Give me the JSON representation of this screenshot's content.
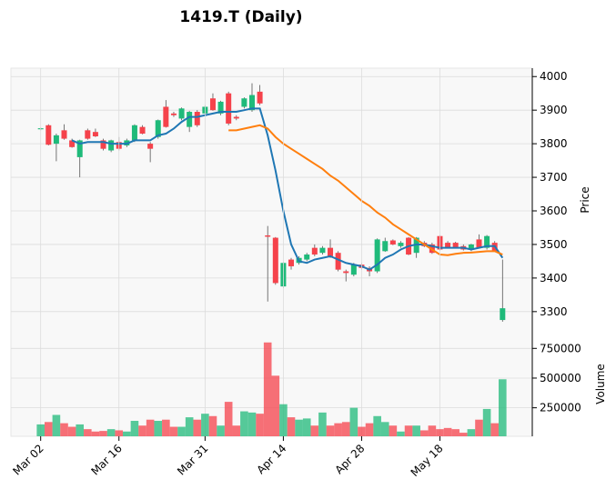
{
  "chart_data": [
    {
      "type": "candlestick",
      "title": "1419.T (Daily)",
      "y_label": "Price",
      "up_color": "#1fba7a",
      "down_color": "#f5424b",
      "open": [
        3843,
        3855,
        3800,
        3840,
        3810,
        3760,
        3840,
        3835,
        3810,
        3780,
        3805,
        3795,
        3810,
        3850,
        3800,
        3820,
        3910,
        3890,
        3875,
        3850,
        3895,
        3890,
        3935,
        3890,
        3950,
        3880,
        3910,
        3900,
        3955,
        3527,
        3520,
        3375,
        3455,
        3445,
        3455,
        3490,
        3475,
        3490,
        3475,
        3420,
        3410,
        3440,
        3430,
        3420,
        3480,
        3512,
        3495,
        3520,
        3475,
        3505,
        3500,
        3525,
        3505,
        3505,
        3495,
        3485,
        3515,
        3490,
        3505,
        3275
      ],
      "high": [
        3848,
        3858,
        3830,
        3858,
        3815,
        3812,
        3845,
        3845,
        3815,
        3812,
        3820,
        3815,
        3858,
        3855,
        3805,
        3872,
        3930,
        3895,
        3908,
        3898,
        3900,
        3915,
        3950,
        3928,
        3955,
        3885,
        3938,
        3980,
        3975,
        3555,
        3522,
        3448,
        3460,
        3465,
        3475,
        3500,
        3495,
        3515,
        3480,
        3425,
        3445,
        3445,
        3435,
        3518,
        3520,
        3515,
        3510,
        3522,
        3522,
        3510,
        3505,
        3528,
        3510,
        3508,
        3500,
        3502,
        3530,
        3528,
        3510,
        3455
      ],
      "low": [
        3840,
        3795,
        3748,
        3812,
        3788,
        3700,
        3812,
        3820,
        3780,
        3775,
        3780,
        3790,
        3805,
        3828,
        3745,
        3815,
        3848,
        3880,
        3870,
        3835,
        3850,
        3885,
        3898,
        3885,
        3855,
        3870,
        3905,
        3895,
        3915,
        3330,
        3380,
        3370,
        3425,
        3440,
        3450,
        3465,
        3470,
        3460,
        3420,
        3390,
        3405,
        3425,
        3405,
        3415,
        3478,
        3498,
        3490,
        3468,
        3460,
        3492,
        3472,
        3482,
        3488,
        3488,
        3482,
        3480,
        3488,
        3485,
        3478,
        3270
      ],
      "close": [
        3846,
        3797,
        3825,
        3815,
        3790,
        3810,
        3815,
        3822,
        3785,
        3810,
        3785,
        3810,
        3855,
        3830,
        3785,
        3870,
        3850,
        3885,
        3905,
        3895,
        3855,
        3910,
        3900,
        3925,
        3860,
        3875,
        3935,
        3945,
        3920,
        3523,
        3385,
        3445,
        3435,
        3460,
        3470,
        3470,
        3490,
        3465,
        3425,
        3415,
        3440,
        3430,
        3420,
        3515,
        3510,
        3500,
        3505,
        3470,
        3520,
        3495,
        3475,
        3485,
        3490,
        3490,
        3485,
        3500,
        3490,
        3525,
        3480,
        3310
      ],
      "moving_averages": [
        {
          "color": "#1f77b4",
          "values": [
            null,
            null,
            null,
            null,
            3810,
            3800,
            3805,
            3805,
            3805,
            3800,
            3800,
            3800,
            3810,
            3810,
            3810,
            3825,
            3830,
            3845,
            3865,
            3880,
            3880,
            3885,
            3890,
            3895,
            3895,
            3895,
            3900,
            3905,
            3905,
            3825,
            3720,
            3600,
            3500,
            3450,
            3445,
            3455,
            3460,
            3465,
            3455,
            3445,
            3440,
            3435,
            3425,
            3440,
            3460,
            3470,
            3485,
            3495,
            3500,
            3500,
            3495,
            3490,
            3490,
            3490,
            3490,
            3485,
            3490,
            3495,
            3495,
            3460
          ]
        },
        {
          "color": "#ff7f0e",
          "values": [
            null,
            null,
            null,
            null,
            null,
            null,
            null,
            null,
            null,
            null,
            null,
            null,
            null,
            null,
            null,
            null,
            null,
            null,
            null,
            null,
            null,
            null,
            null,
            null,
            3840,
            3840,
            3845,
            3850,
            3855,
            3845,
            3820,
            3800,
            3785,
            3770,
            3755,
            3740,
            3725,
            3705,
            3690,
            3670,
            3650,
            3630,
            3615,
            3595,
            3580,
            3560,
            3545,
            3530,
            3515,
            3500,
            3485,
            3470,
            3468,
            3472,
            3475,
            3476,
            3478,
            3480,
            3480,
            3470
          ]
        }
      ],
      "xlim": [
        -3.8,
        62.8
      ],
      "ylim": [
        3240,
        4025
      ],
      "yticks": [
        3300,
        3400,
        3500,
        3600,
        3700,
        3800,
        3900,
        4000
      ],
      "grid": true
    },
    {
      "type": "bar",
      "y_label": "Volume",
      "up_color": "#1fba7a",
      "down_color": "#f5424b",
      "values": [
        110000,
        130000,
        190000,
        120000,
        90000,
        110000,
        70000,
        50000,
        55000,
        70000,
        60000,
        50000,
        140000,
        100000,
        150000,
        140000,
        150000,
        90000,
        90000,
        170000,
        150000,
        200000,
        180000,
        100000,
        300000,
        100000,
        220000,
        210000,
        200000,
        800000,
        520000,
        280000,
        170000,
        150000,
        160000,
        100000,
        210000,
        100000,
        120000,
        130000,
        250000,
        90000,
        120000,
        180000,
        130000,
        100000,
        50000,
        100000,
        100000,
        60000,
        100000,
        70000,
        80000,
        70000,
        40000,
        70000,
        150000,
        240000,
        120000,
        490000
      ],
      "xlim": [
        -3.8,
        62.8
      ],
      "ylim": [
        10000,
        890000
      ],
      "yticks": [
        250000,
        500000,
        750000
      ],
      "xticks": [
        {
          "value": 0,
          "label": "Mar 02"
        },
        {
          "value": 10,
          "label": "Mar 16"
        },
        {
          "value": 21,
          "label": "Mar 31"
        },
        {
          "value": 31,
          "label": "Apr 14"
        },
        {
          "value": 41,
          "label": "Apr 28"
        },
        {
          "value": 51,
          "label": "May 18"
        }
      ],
      "grid": true
    }
  ]
}
